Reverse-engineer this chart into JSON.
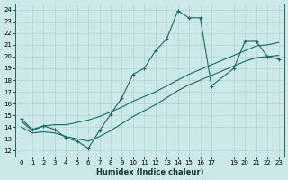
{
  "xlabel": "Humidex (Indice chaleur)",
  "bg_color": "#cce8e8",
  "line_color": "#1a6666",
  "grid_color": "#b0d4d4",
  "xlim": [
    -0.5,
    23.5
  ],
  "ylim": [
    11.5,
    24.5
  ],
  "xticks": [
    0,
    1,
    2,
    3,
    4,
    5,
    6,
    7,
    8,
    9,
    10,
    11,
    12,
    13,
    14,
    15,
    16,
    17,
    19,
    20,
    21,
    22,
    23
  ],
  "yticks": [
    12,
    13,
    14,
    15,
    16,
    17,
    18,
    19,
    20,
    21,
    22,
    23,
    24
  ],
  "line_main_x": [
    0,
    1,
    2,
    3,
    4,
    5,
    6,
    7,
    8,
    9,
    10,
    11,
    12,
    13,
    14,
    15,
    16,
    17,
    19,
    20,
    21,
    22,
    23
  ],
  "line_main_y": [
    14.7,
    13.8,
    14.1,
    13.8,
    13.1,
    12.8,
    12.2,
    13.7,
    15.1,
    16.5,
    18.5,
    19.0,
    20.5,
    21.5,
    23.9,
    23.3,
    23.3,
    17.5,
    19.0,
    21.3,
    21.3,
    20.0,
    19.8
  ],
  "line_upper_x": [
    0,
    1,
    2,
    3,
    4,
    5,
    6,
    7,
    8,
    9,
    10,
    11,
    12,
    13,
    14,
    15,
    16,
    17,
    19,
    20,
    21,
    22,
    23
  ],
  "line_upper_y": [
    14.5,
    13.7,
    14.1,
    14.2,
    14.2,
    14.4,
    14.6,
    14.9,
    15.3,
    15.7,
    16.2,
    16.6,
    17.0,
    17.5,
    18.0,
    18.5,
    18.9,
    19.3,
    20.1,
    20.5,
    20.9,
    21.0,
    21.2
  ],
  "line_lower_x": [
    0,
    1,
    2,
    3,
    4,
    5,
    6,
    7,
    8,
    9,
    10,
    11,
    12,
    13,
    14,
    15,
    16,
    17,
    19,
    20,
    21,
    22,
    23
  ],
  "line_lower_y": [
    14.0,
    13.5,
    13.6,
    13.5,
    13.2,
    13.0,
    12.8,
    13.2,
    13.7,
    14.3,
    14.9,
    15.4,
    15.9,
    16.5,
    17.1,
    17.6,
    18.0,
    18.4,
    19.2,
    19.6,
    19.9,
    20.0,
    20.1
  ]
}
